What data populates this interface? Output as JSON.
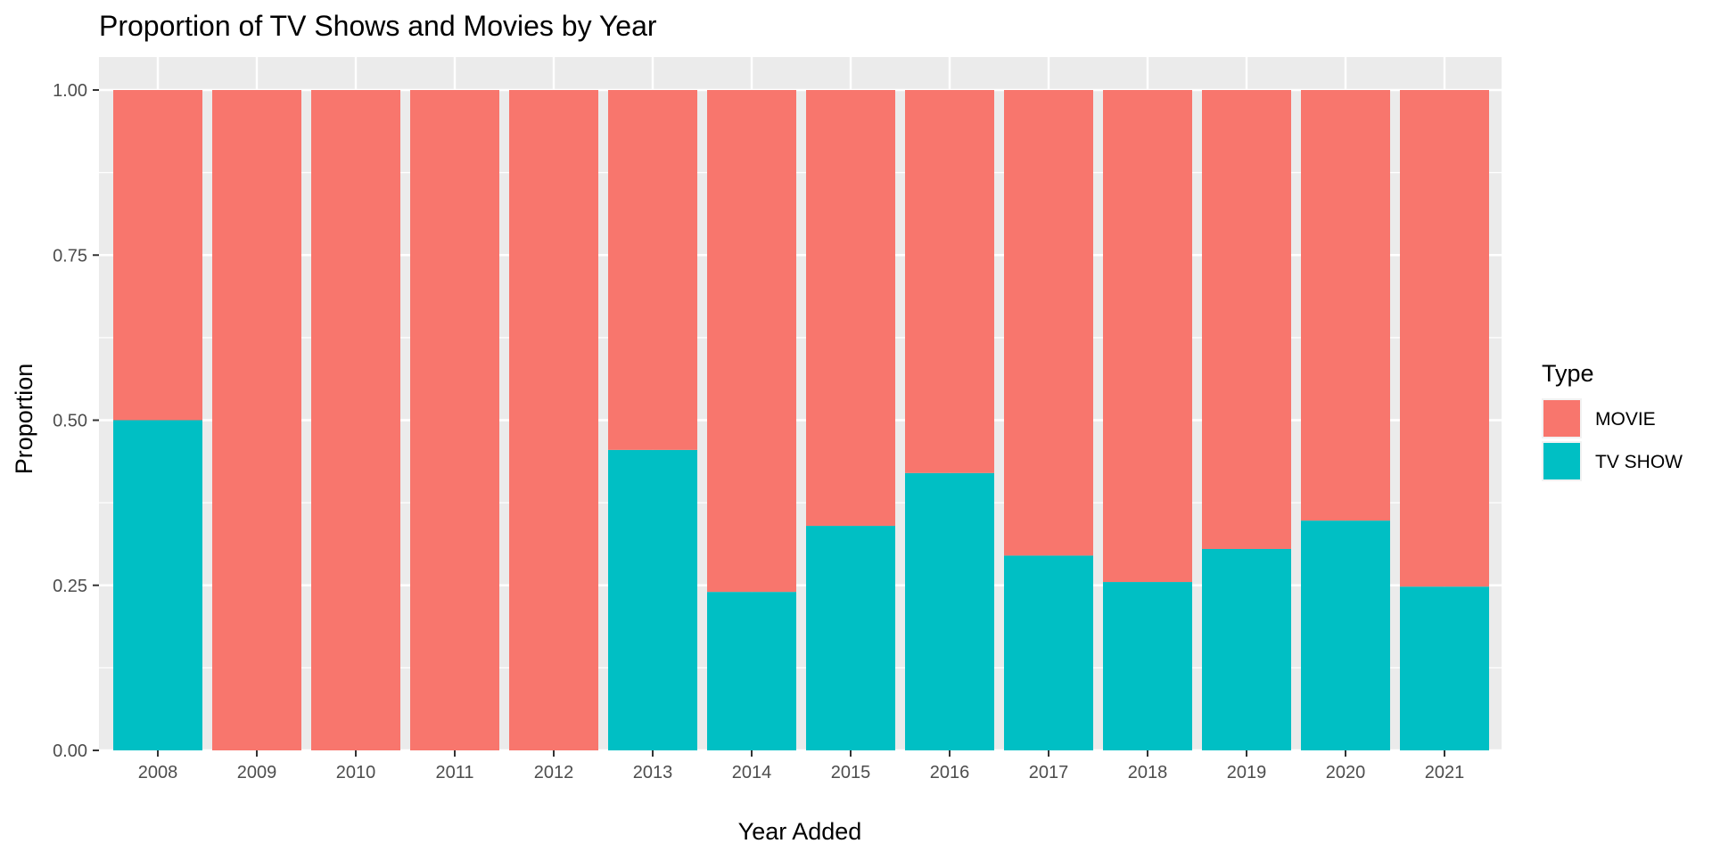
{
  "chart_data": {
    "type": "bar",
    "stacked": true,
    "title": "Proportion of TV Shows and Movies by Year",
    "xlabel": "Year Added",
    "ylabel": "Proportion",
    "ylim": [
      0,
      1
    ],
    "yticks": [
      {
        "value": 0,
        "label": "0.00"
      },
      {
        "value": 0.25,
        "label": "0.25"
      },
      {
        "value": 0.5,
        "label": "0.50"
      },
      {
        "value": 0.75,
        "label": "0.75"
      },
      {
        "value": 1,
        "label": "1.00"
      }
    ],
    "grid": true,
    "legend": {
      "title": "Type",
      "position": "right"
    },
    "categories": [
      "2008",
      "2009",
      "2010",
      "2011",
      "2012",
      "2013",
      "2014",
      "2015",
      "2016",
      "2017",
      "2018",
      "2019",
      "2020",
      "2021"
    ],
    "series": [
      {
        "name": "MOVIE",
        "color": "#F8766D",
        "values": [
          0.5,
          1.0,
          1.0,
          1.0,
          1.0,
          0.545,
          0.76,
          0.66,
          0.58,
          0.705,
          0.745,
          0.695,
          0.652,
          0.752
        ]
      },
      {
        "name": "TV SHOW",
        "color": "#00BFC4",
        "values": [
          0.5,
          0.0,
          0.0,
          0.0,
          0.0,
          0.455,
          0.24,
          0.34,
          0.42,
          0.295,
          0.255,
          0.305,
          0.348,
          0.248
        ]
      }
    ]
  }
}
